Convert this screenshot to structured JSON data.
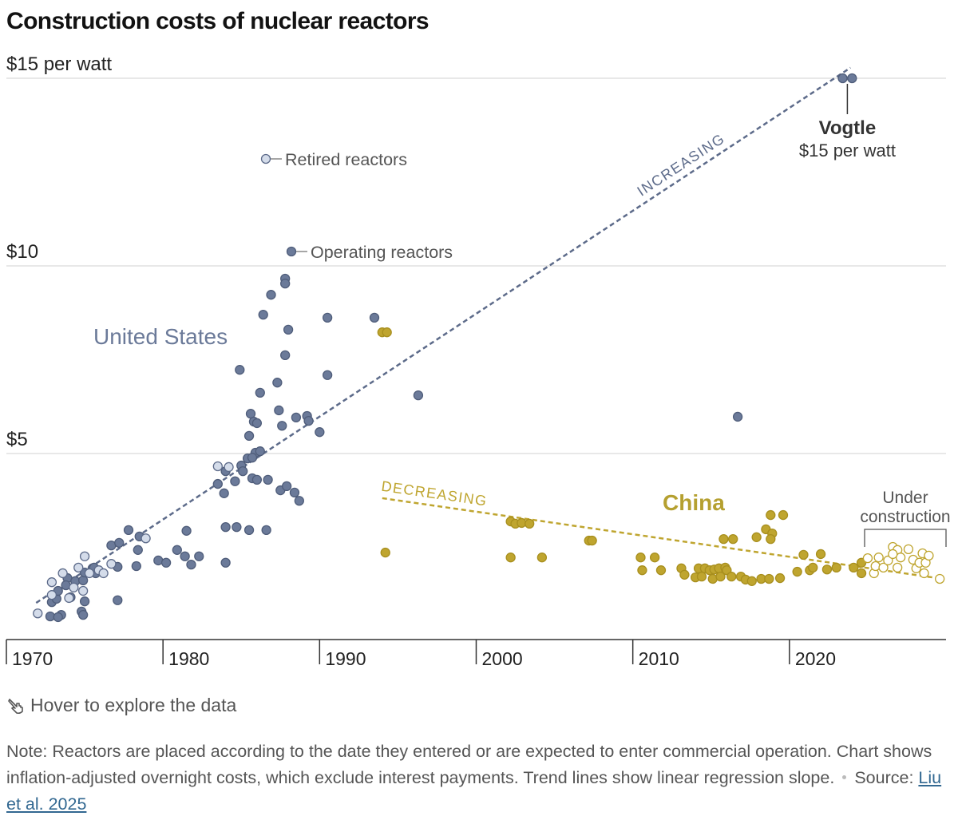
{
  "chart_data": {
    "type": "scatter",
    "title": "Construction costs of nuclear reactors",
    "xlim": [
      1970,
      2030
    ],
    "ylim": [
      0,
      15
    ],
    "xticks": [
      1970,
      1980,
      1990,
      2000,
      2010,
      2020
    ],
    "yticks": [
      {
        "value": 5,
        "label": "$5"
      },
      {
        "value": 10,
        "label": "$10"
      },
      {
        "value": 15,
        "label": "$15 per watt"
      }
    ],
    "grid": true,
    "series": [
      {
        "name": "Operating reactors",
        "color": "#6b7a99",
        "edge_color": "#4f5d7a",
        "filled": true,
        "x": [
          1972.8,
          1973.5,
          1973.3,
          1972.9,
          1973.2,
          1973.3,
          1973.9,
          1974.4,
          1974.9,
          1975.0,
          1975.5,
          1975.7,
          1975.6,
          1977.1,
          1977.1,
          1976.7,
          1977.2,
          1977.8,
          1978.5,
          1978.4,
          1978.3,
          1979.7,
          1980.2,
          1980.9,
          1981.4,
          1981.8,
          1982.3,
          1981.5,
          1975.0,
          1974.8,
          1974.9,
          1974.1,
          1973.8,
          1983.5,
          1983.9,
          1984.0,
          1984.0,
          1984.7,
          1985.5,
          1986.6,
          1985.0,
          1985.7,
          1986.0,
          1986.7,
          1987.5,
          1987.9,
          1988.4,
          1988.7,
          1984.9,
          1986.2,
          1987.3,
          1987.4,
          1987.6,
          1988.5,
          1989.2,
          1989.3,
          1990.0,
          1990.5,
          1990.5,
          1986.4,
          1986.9,
          1987.8,
          1987.8,
          1988.0,
          1987.8,
          1985.6,
          1985.8,
          1986.0,
          1985.5,
          1985.9,
          1986.2,
          1985.4,
          1985.7,
          1985.1,
          1984.0,
          1984.6,
          1993.5,
          1996.3,
          2016.7,
          2023.4,
          2024.0
        ],
        "values": [
          0.66,
          0.7,
          0.64,
          1.04,
          1.13,
          1.34,
          1.68,
          1.6,
          1.62,
          1.83,
          1.94,
          1.81,
          1.96,
          1.98,
          1.09,
          2.55,
          2.62,
          2.96,
          2.79,
          2.43,
          2.0,
          2.15,
          2.09,
          2.43,
          2.26,
          2.04,
          2.26,
          2.94,
          1.06,
          0.79,
          0.7,
          1.17,
          1.49,
          4.19,
          3.94,
          2.09,
          3.04,
          3.04,
          2.96,
          2.96,
          4.68,
          4.34,
          4.3,
          4.3,
          4.02,
          4.13,
          3.96,
          3.74,
          7.23,
          6.62,
          6.89,
          6.15,
          5.74,
          5.96,
          6.0,
          5.87,
          5.57,
          7.09,
          8.62,
          8.7,
          9.23,
          9.66,
          9.53,
          8.3,
          7.62,
          6.06,
          5.85,
          5.81,
          5.47,
          5.02,
          5.06,
          4.87,
          4.89,
          4.53,
          4.53,
          4.26,
          8.62,
          6.55,
          5.98,
          15.0,
          15.0
        ]
      },
      {
        "name": "Retired reactors",
        "color": "#d4dcea",
        "edge_color": "#5d6b8a",
        "filled": true,
        "x": [
          1972.0,
          1972.9,
          1973.6,
          1972.9,
          1974.0,
          1974.6,
          1975.0,
          1975.3,
          1975.9,
          1976.2,
          1976.7,
          1978.9,
          1983.5,
          1984.2,
          1974.9,
          1974.3
        ],
        "values": [
          0.74,
          1.57,
          1.81,
          1.23,
          1.15,
          1.96,
          2.26,
          1.81,
          1.89,
          1.81,
          2.06,
          2.74,
          4.66,
          4.64,
          1.34,
          1.43
        ]
      },
      {
        "color": "#bfa52f",
        "edge_color": "#a88f1e",
        "filled": true,
        "x": [
          1994.0,
          1994.3,
          1994.2,
          2002.2,
          2002.5,
          2002.9,
          2003.4,
          2002.2,
          2004.2,
          2007.2,
          2007.4,
          2010.5,
          2011.4,
          2010.6,
          2011.8,
          2013.1,
          2013.3,
          2014.2,
          2014.6,
          2014.9,
          2015.2,
          2015.5,
          2015.9,
          2016.0,
          2014.0,
          2014.4,
          2015.1,
          2015.6,
          2016.3,
          2016.9,
          2017.2,
          2017.6,
          2018.2,
          2018.7,
          2019.4,
          2015.8,
          2016.4,
          2017.9,
          2018.5,
          2018.9,
          2018.8,
          2018.8,
          2019.6,
          2020.5,
          2020.9,
          2021.3,
          2021.5,
          2022.0,
          2022.4,
          2023.0,
          2024.1,
          2024.6,
          2024.6
        ],
        "values": [
          8.23,
          8.23,
          2.36,
          3.19,
          3.13,
          3.15,
          3.13,
          2.23,
          2.23,
          2.68,
          2.68,
          2.23,
          2.23,
          1.89,
          1.89,
          1.94,
          1.77,
          1.94,
          1.94,
          1.89,
          1.91,
          1.94,
          1.96,
          1.89,
          1.7,
          1.72,
          1.66,
          1.72,
          1.72,
          1.72,
          1.64,
          1.6,
          1.66,
          1.66,
          1.68,
          2.72,
          2.72,
          2.77,
          2.98,
          2.87,
          2.72,
          3.36,
          3.36,
          1.85,
          2.3,
          1.89,
          1.96,
          2.32,
          1.91,
          1.96,
          1.96,
          2.09,
          1.81
        ]
      },
      {
        "name": "Under construction",
        "color": "#ffffff",
        "edge_color": "#bfa52f",
        "filled": false,
        "x": [
          2025.0,
          2025.4,
          2025.7,
          2025.5,
          2026.0,
          2026.3,
          2026.6,
          2026.9,
          2026.9,
          2027.1,
          2027.6,
          2027.9,
          2028.1,
          2028.3,
          2028.5,
          2028.6,
          2028.7,
          2028.9,
          2029.6,
          2026.6
        ],
        "values": [
          2.21,
          1.81,
          2.23,
          2.0,
          1.96,
          2.15,
          2.51,
          2.43,
          1.96,
          2.23,
          2.45,
          2.17,
          1.94,
          2.09,
          2.34,
          1.81,
          2.09,
          2.28,
          1.66,
          2.32
        ]
      }
    ],
    "trends": [
      {
        "label": "INCREASING",
        "color": "#5d6b8a",
        "x": [
          1971.9,
          2023.9
        ],
        "values": [
          1.02,
          15.28
        ]
      },
      {
        "label": "DECREASING",
        "color": "#bfa52f",
        "x": [
          1994.0,
          2029.8
        ],
        "values": [
          3.81,
          1.66
        ]
      }
    ],
    "annotations": [
      {
        "text": "United States",
        "color": "#6b7a99"
      },
      {
        "text": "China",
        "color": "#b5a030"
      }
    ],
    "highlight": {
      "label": "Vogtle",
      "value_label": "$15 per watt"
    }
  },
  "footer": {
    "hint": "Hover to explore the data",
    "note": "Note: Reactors are placed according to the date they entered or are expected to enter commercial operation. Chart shows inflation-adjusted overnight costs, which exclude interest payments. Trend lines show linear regression slope.",
    "source_label": "Source:",
    "source_link": "Liu et al. 2025"
  }
}
